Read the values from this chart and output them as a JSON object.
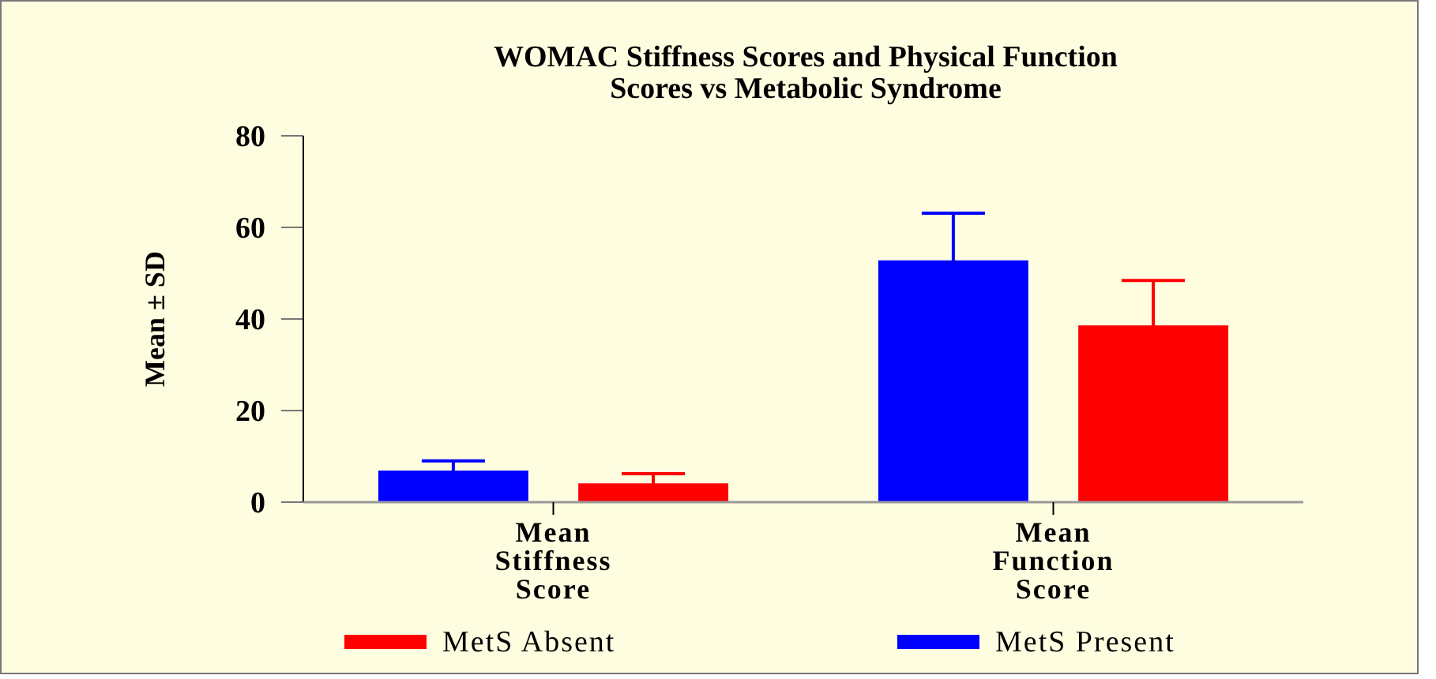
{
  "chart_data": {
    "type": "bar",
    "title": "WOMAC Stiffness Scores and Physical Function Scores vs Metabolic Syndrome",
    "ylabel": "Mean ± SD",
    "categories": [
      "Mean Stiffness Score",
      "Mean Function Score"
    ],
    "series": [
      {
        "name": "MetS Present",
        "color": "#0000ff",
        "values": [
          6.9,
          52.8
        ],
        "errors": [
          2.1,
          10.3
        ]
      },
      {
        "name": "MetS Absent",
        "color": "#ff0000",
        "values": [
          4.1,
          38.6
        ],
        "errors": [
          2.1,
          9.8
        ]
      }
    ],
    "ylim": [
      0,
      80
    ],
    "yticks": [
      0,
      20,
      40,
      60,
      80
    ],
    "legend": "bottom"
  }
}
